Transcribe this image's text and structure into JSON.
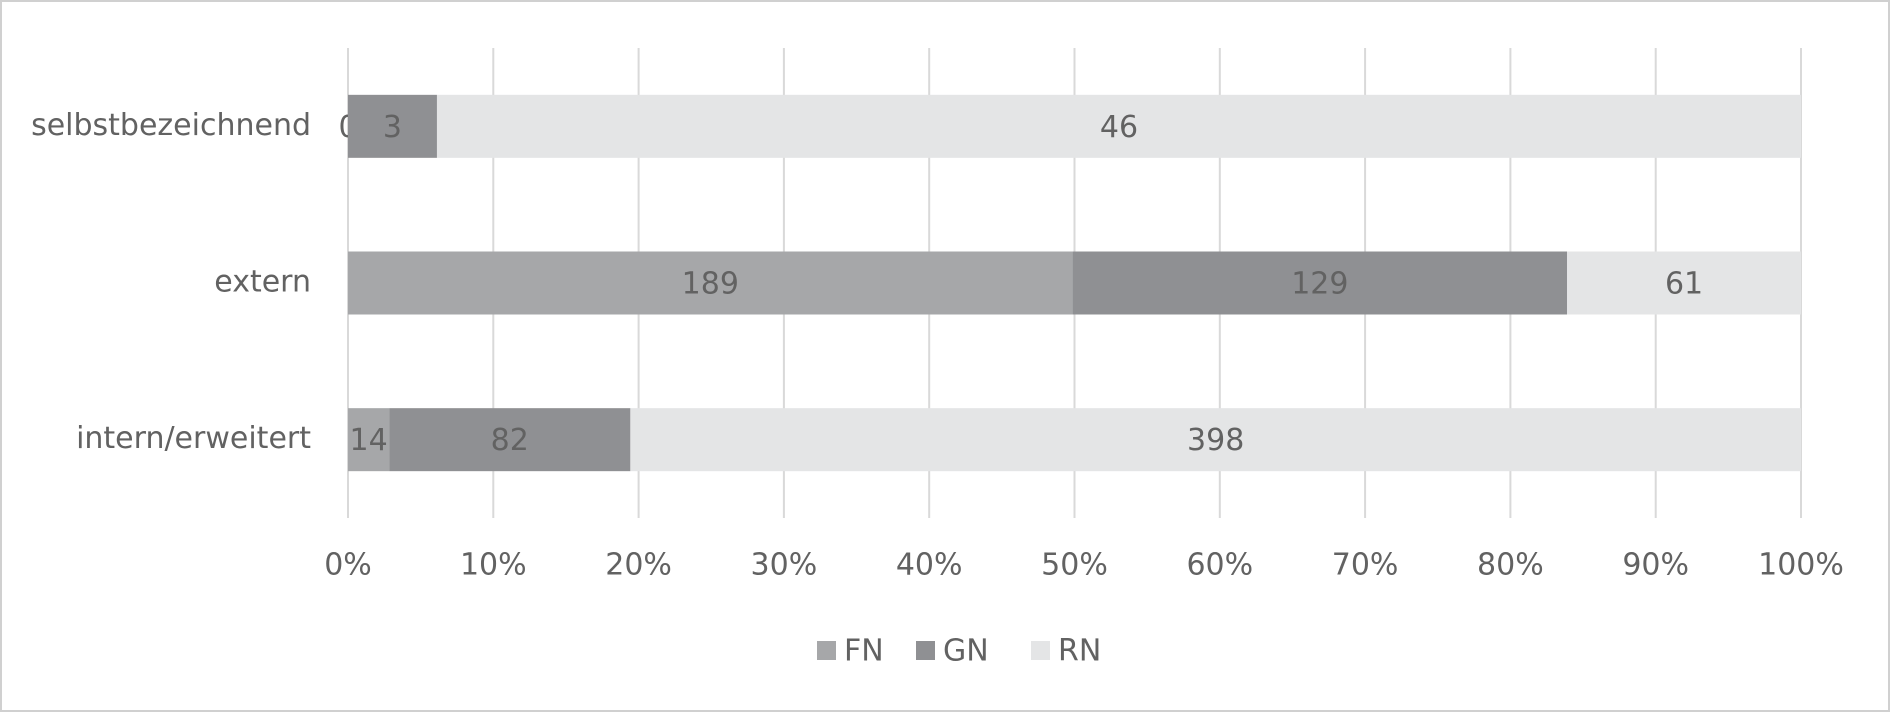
{
  "chart_data": {
    "type": "bar",
    "orientation": "horizontal",
    "stacking": "percent",
    "categories": [
      "selbstbezeichnend",
      "extern",
      "intern/erweitert"
    ],
    "series": [
      {
        "name": "FN",
        "color": "#a6a7a9",
        "values": [
          0,
          189,
          14
        ]
      },
      {
        "name": "GN",
        "color": "#8f9093",
        "values": [
          3,
          129,
          82
        ]
      },
      {
        "name": "RN",
        "color": "#e4e5e6",
        "values": [
          46,
          61,
          398
        ]
      }
    ],
    "xlim": [
      0,
      100
    ],
    "xticks": [
      {
        "value": 0,
        "label": "0%"
      },
      {
        "value": 10,
        "label": "10%"
      },
      {
        "value": 20,
        "label": "20%"
      },
      {
        "value": 30,
        "label": "30%"
      },
      {
        "value": 40,
        "label": "40%"
      },
      {
        "value": 50,
        "label": "50%"
      },
      {
        "value": 60,
        "label": "60%"
      },
      {
        "value": 70,
        "label": "70%"
      },
      {
        "value": 80,
        "label": "80%"
      },
      {
        "value": 90,
        "label": "90%"
      },
      {
        "value": 100,
        "label": "100%"
      }
    ],
    "grid": true,
    "legend": "bottom"
  }
}
